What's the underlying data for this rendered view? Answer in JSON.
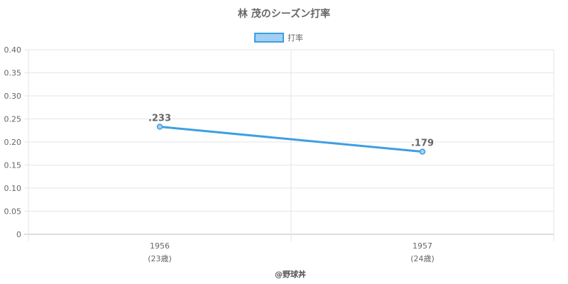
{
  "chart_data": {
    "type": "line",
    "title": "林 茂のシーズン打率",
    "legend": {
      "position": "top",
      "entries": [
        "打率"
      ]
    },
    "x_categories": [
      "1956",
      "1957"
    ],
    "x_sublabels": [
      "(23歳)",
      "(24歳)"
    ],
    "series": [
      {
        "name": "打率",
        "values": [
          0.233,
          0.179
        ],
        "data_labels": [
          ".233",
          ".179"
        ],
        "color": "#3d9fe3",
        "fill_color": "#a3d0f2"
      }
    ],
    "ylim": [
      0,
      0.4
    ],
    "y_ticks": [
      "0",
      "0.05",
      "0.10",
      "0.15",
      "0.20",
      "0.25",
      "0.30",
      "0.35",
      "0.40"
    ],
    "grid": true
  },
  "footer": {
    "credit": "@野球丼"
  }
}
